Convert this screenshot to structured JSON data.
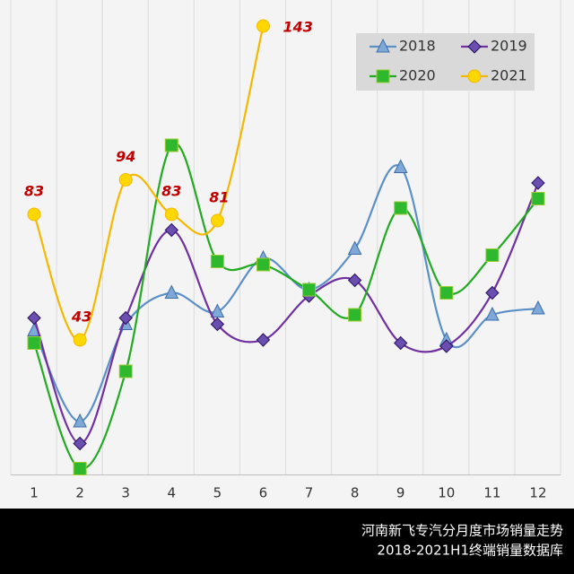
{
  "chart_data": {
    "type": "line",
    "title": "河南新飞专汽分月度市场销量走势",
    "subtitle": "2018-2021H1终端销量数据库",
    "categories": [
      "1",
      "2",
      "3",
      "4",
      "5",
      "6",
      "7",
      "8",
      "9",
      "10",
      "11",
      "12"
    ],
    "ylim": [
      0,
      150
    ],
    "smooth": true,
    "legend": "top-right",
    "series": [
      {
        "name": "2018",
        "color": "#5b8fc7",
        "marker": "triangle",
        "values": [
          46,
          17,
          48,
          58,
          52,
          69,
          59,
          72,
          98,
          43,
          51,
          53
        ]
      },
      {
        "name": "2019",
        "color": "#7030a0",
        "marker": "diamond",
        "values": [
          50,
          10,
          50,
          78,
          48,
          43,
          57,
          62,
          42,
          41,
          58,
          93
        ]
      },
      {
        "name": "2020",
        "color": "#22aa22",
        "marker": "square",
        "values": [
          42,
          2,
          33,
          105,
          68,
          67,
          59,
          51,
          85,
          58,
          70,
          88
        ]
      },
      {
        "name": "2021",
        "color": "#f5b800",
        "marker": "circle",
        "data_labels": true,
        "values": [
          83,
          43,
          94,
          83,
          81,
          143,
          null,
          null,
          null,
          null,
          null,
          null
        ]
      }
    ]
  }
}
